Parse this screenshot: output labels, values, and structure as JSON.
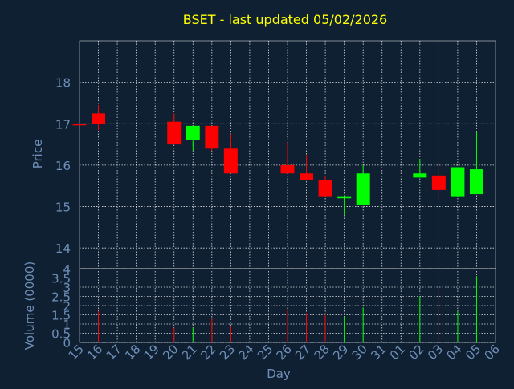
{
  "colors": {
    "background": "#0f2032",
    "title": "#ffff00",
    "axis_text": "#6f8fb8",
    "frame": "#ffffff",
    "up": "#00ff00",
    "down": "#ff0000"
  },
  "chart_data": {
    "type": "candlestick",
    "title": "BSET - last updated 05/02/2026",
    "xlabel": "Day",
    "x_ticks": [
      "15",
      "16",
      "17",
      "18",
      "19",
      "20",
      "21",
      "22",
      "23",
      "24",
      "25",
      "26",
      "27",
      "28",
      "29",
      "30",
      "31",
      "01",
      "02",
      "03",
      "04",
      "05",
      "06"
    ],
    "price_panel": {
      "ylabel": "Price",
      "ylim": [
        13.5,
        19.0
      ],
      "y_ticks": [
        14,
        15,
        16,
        17,
        18
      ],
      "grid": true
    },
    "volume_panel": {
      "ylabel": "Volume (0000)",
      "ylim": [
        0,
        4
      ],
      "y_ticks": [
        "0",
        "0.5",
        "1",
        "1.5",
        "2",
        "2.5",
        "3",
        "3.5",
        "4"
      ],
      "grid": true
    },
    "candles": [
      {
        "day": "15",
        "open": 17.0,
        "high": 17.0,
        "low": 17.0,
        "close": 17.0,
        "volume": 0
      },
      {
        "day": "16",
        "open": 17.25,
        "high": 17.45,
        "low": 16.85,
        "close": 17.0,
        "volume": 1.7
      },
      {
        "day": "20",
        "open": 17.05,
        "high": 17.25,
        "low": 16.5,
        "close": 16.5,
        "volume": 0.8
      },
      {
        "day": "21",
        "open": 16.6,
        "high": 16.95,
        "low": 16.35,
        "close": 16.95,
        "volume": 0.8
      },
      {
        "day": "22",
        "open": 16.95,
        "high": 16.95,
        "low": 16.35,
        "close": 16.4,
        "volume": 1.3
      },
      {
        "day": "23",
        "open": 16.4,
        "high": 16.75,
        "low": 15.8,
        "close": 15.8,
        "volume": 0.9
      },
      {
        "day": "26",
        "open": 16.0,
        "high": 16.55,
        "low": 15.8,
        "close": 15.8,
        "volume": 1.8
      },
      {
        "day": "27",
        "open": 15.8,
        "high": 16.25,
        "low": 15.65,
        "close": 15.65,
        "volume": 1.6
      },
      {
        "day": "28",
        "open": 15.65,
        "high": 15.75,
        "low": 15.25,
        "close": 15.25,
        "volume": 1.5
      },
      {
        "day": "29",
        "open": 15.2,
        "high": 15.25,
        "low": 14.8,
        "close": 15.25,
        "volume": 1.4
      },
      {
        "day": "30",
        "open": 15.05,
        "high": 16.0,
        "low": 15.05,
        "close": 15.8,
        "volume": 1.9
      },
      {
        "day": "02",
        "open": 15.7,
        "high": 16.15,
        "low": 15.7,
        "close": 15.8,
        "volume": 2.5
      },
      {
        "day": "03",
        "open": 15.75,
        "high": 16.05,
        "low": 15.2,
        "close": 15.4,
        "volume": 2.9
      },
      {
        "day": "04",
        "open": 15.25,
        "high": 15.95,
        "low": 15.25,
        "close": 15.95,
        "volume": 1.7
      },
      {
        "day": "05",
        "open": 15.3,
        "high": 16.8,
        "low": 15.3,
        "close": 15.9,
        "volume": 3.6
      }
    ]
  }
}
